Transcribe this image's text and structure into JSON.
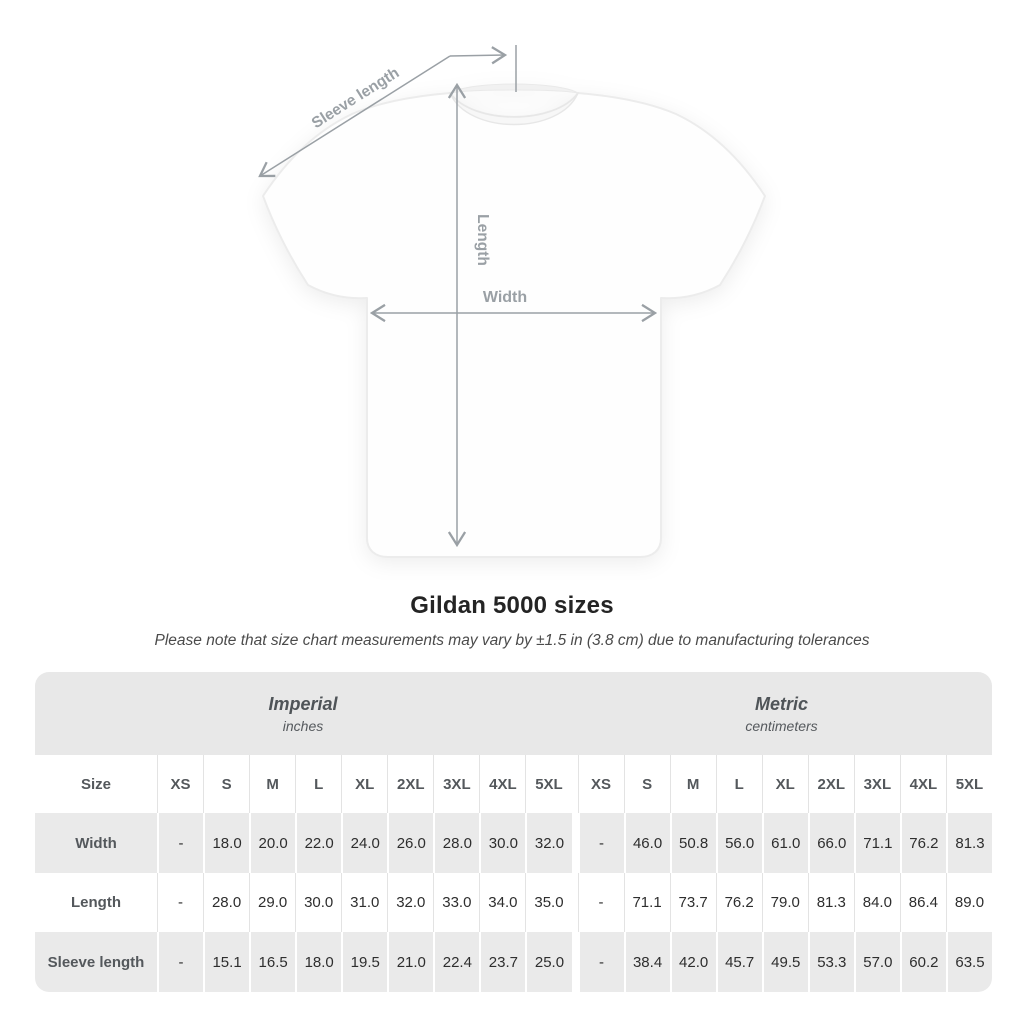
{
  "diagram": {
    "sleeve_label": "Sleeve length",
    "length_label": "Length",
    "width_label": "Width"
  },
  "heading": {
    "title": "Gildan 5000 sizes",
    "subtitle": "Please note that size chart measurements may vary by ±1.5 in (3.8 cm) due to manufacturing tolerances"
  },
  "table": {
    "groups": [
      {
        "label": "Imperial",
        "unit": "inches"
      },
      {
        "label": "Metric",
        "unit": "centimeters"
      }
    ],
    "size_column_header": "Size",
    "sizes": [
      "XS",
      "S",
      "M",
      "L",
      "XL",
      "2XL",
      "3XL",
      "4XL",
      "5XL"
    ],
    "rows": [
      {
        "label": "Width",
        "imperial": [
          "-",
          "18.0",
          "20.0",
          "22.0",
          "24.0",
          "26.0",
          "28.0",
          "30.0",
          "32.0"
        ],
        "metric": [
          "-",
          "46.0",
          "50.8",
          "56.0",
          "61.0",
          "66.0",
          "71.1",
          "76.2",
          "81.3"
        ]
      },
      {
        "label": "Length",
        "imperial": [
          "-",
          "28.0",
          "29.0",
          "30.0",
          "31.0",
          "32.0",
          "33.0",
          "34.0",
          "35.0"
        ],
        "metric": [
          "-",
          "71.1",
          "73.7",
          "76.2",
          "79.0",
          "81.3",
          "84.0",
          "86.4",
          "89.0"
        ]
      },
      {
        "label": "Sleeve length",
        "imperial": [
          "-",
          "15.1",
          "16.5",
          "18.0",
          "19.5",
          "21.0",
          "22.4",
          "23.7",
          "25.0"
        ],
        "metric": [
          "-",
          "38.4",
          "42.0",
          "45.7",
          "49.5",
          "53.3",
          "57.0",
          "60.2",
          "63.5"
        ]
      }
    ]
  },
  "colors": {
    "band_gray": "#e8e8e8",
    "row_gray": "#eaeaea",
    "white_separator": "#ffffff",
    "gray_separator": "#e3e3e3",
    "header_text": "#54585c",
    "value_text": "#2e2e2e",
    "diagram_gray": "#9aa0a5",
    "title_text": "#242424"
  }
}
